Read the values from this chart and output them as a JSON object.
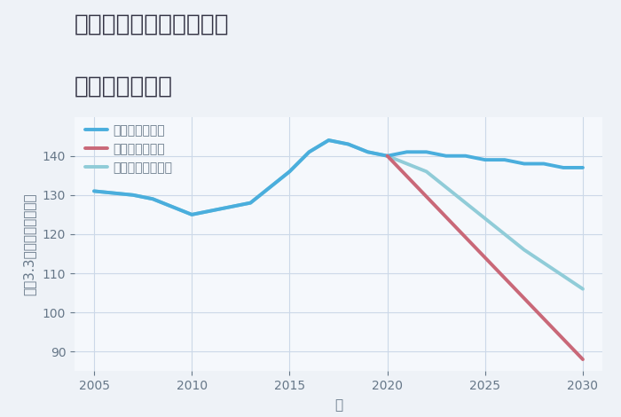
{
  "title_line1": "兵庫県西宮市高木東町の",
  "title_line2": "土地の価格推移",
  "xlabel": "年",
  "ylabel": "坪（3.3㎡）単価（万円）",
  "ylim": [
    85,
    150
  ],
  "xlim": [
    2004,
    2031
  ],
  "background_color": "#eef2f7",
  "plot_bg_color": "#f5f8fc",
  "grid_color": "#ccd8e8",
  "good_scenario": {
    "label": "グッドシナリオ",
    "color": "#4aaedd",
    "linewidth": 2.8,
    "x": [
      2005,
      2007,
      2008,
      2010,
      2011,
      2013,
      2015,
      2016,
      2017,
      2018,
      2019,
      2020,
      2021,
      2022,
      2023,
      2024,
      2025,
      2026,
      2027,
      2028,
      2029,
      2030
    ],
    "y": [
      131,
      130,
      129,
      125,
      126,
      128,
      136,
      141,
      144,
      143,
      141,
      140,
      141,
      141,
      140,
      140,
      139,
      139,
      138,
      138,
      137,
      137
    ]
  },
  "bad_scenario": {
    "label": "バッドシナリオ",
    "color": "#c96878",
    "linewidth": 2.8,
    "x": [
      2020,
      2030
    ],
    "y": [
      140,
      88
    ]
  },
  "normal_scenario": {
    "label": "ノーマルシナリオ",
    "color": "#90ccd8",
    "linewidth": 2.8,
    "x": [
      2005,
      2007,
      2008,
      2010,
      2011,
      2013,
      2015,
      2016,
      2017,
      2018,
      2019,
      2020,
      2022,
      2025,
      2027,
      2030
    ],
    "y": [
      131,
      130,
      129,
      125,
      126,
      128,
      136,
      141,
      144,
      143,
      141,
      140,
      136,
      124,
      116,
      106
    ]
  },
  "yticks": [
    90,
    100,
    110,
    120,
    130,
    140
  ],
  "xticks": [
    2005,
    2010,
    2015,
    2020,
    2025,
    2030
  ],
  "title_fontsize": 19,
  "axis_fontsize": 11,
  "tick_fontsize": 10,
  "legend_fontsize": 10
}
